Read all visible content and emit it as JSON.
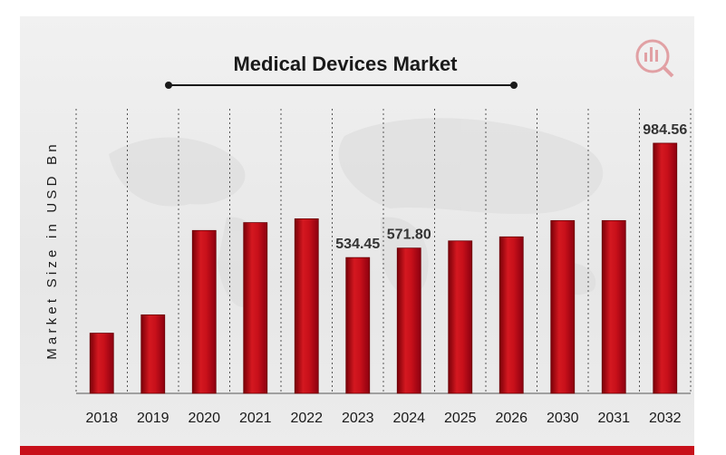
{
  "chart_data": {
    "type": "bar",
    "title": "Medical Devices Market",
    "ylabel": "Market Size in USD Bn",
    "xlabel": "",
    "categories": [
      "2018",
      "2019",
      "2020",
      "2021",
      "2022",
      "2023",
      "2024",
      "2025",
      "2026",
      "2030",
      "2031",
      "2032"
    ],
    "values": [
      237,
      309,
      641,
      672,
      687,
      534.45,
      571.8,
      600,
      616,
      680,
      680,
      984.56
    ],
    "data_labels": {
      "5": "534.45",
      "6": "571.80",
      "11": "984.56"
    },
    "grid": "vertical dashed separators",
    "colors": {
      "bar": "#c8101a",
      "bar_dark": "#7a0008",
      "bar_light": "#e23a3f",
      "text": "#1a1a1a"
    }
  }
}
